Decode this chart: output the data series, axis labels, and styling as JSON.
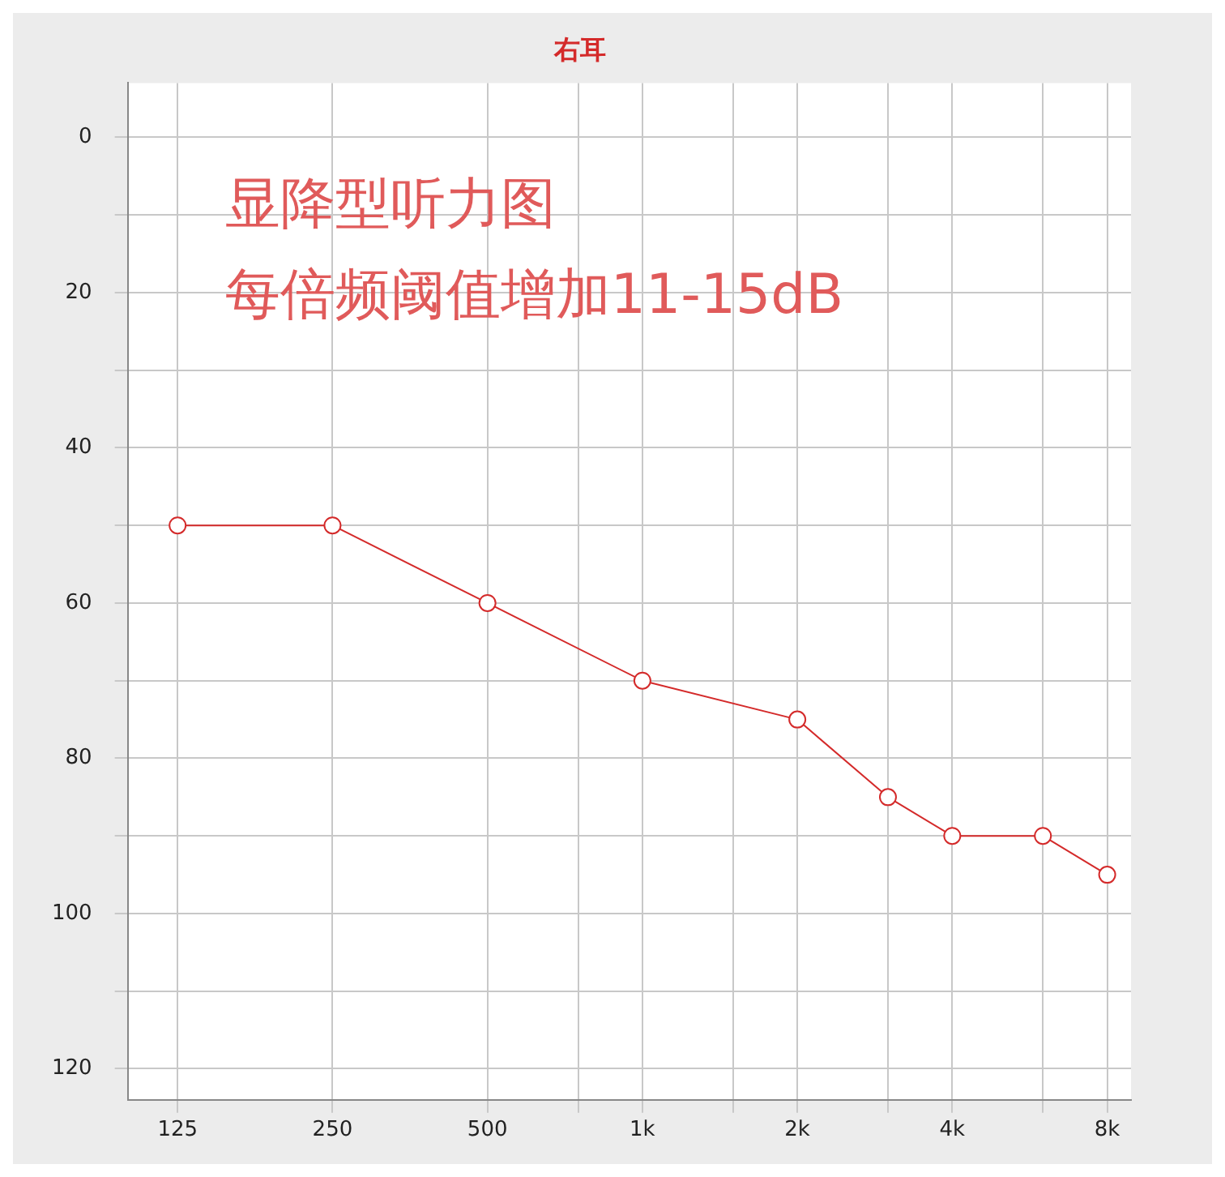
{
  "chart_data": {
    "type": "line",
    "title": "右耳",
    "annotations": [
      "显降型听力图",
      "每倍频阈值增加11-15dB"
    ],
    "x": [
      125,
      250,
      500,
      1000,
      2000,
      3000,
      4000,
      6000,
      8000
    ],
    "series": [
      {
        "color": "#d42a2a",
        "values": [
          50,
          50,
          60,
          70,
          75,
          85,
          90,
          90,
          95
        ]
      }
    ],
    "log": "x",
    "xlim": [
      100,
      8900
    ],
    "xticks": [
      125,
      250,
      500,
      {
        "value": 750,
        "label": null
      },
      {
        "value": 1000,
        "label": "1k"
      },
      {
        "value": 1500,
        "label": null
      },
      {
        "value": 2000,
        "label": "2k"
      },
      {
        "value": 3000,
        "label": null
      },
      {
        "value": 4000,
        "label": "4k"
      },
      {
        "value": 6000,
        "label": null
      },
      {
        "value": 8000,
        "label": "8k"
      }
    ],
    "ylim": [
      124,
      -7
    ],
    "yticks": [
      0,
      {
        "value": 10,
        "label": null
      },
      20,
      {
        "value": 30,
        "label": null
      },
      40,
      {
        "value": 50,
        "label": null
      },
      60,
      {
        "value": 70,
        "label": null
      },
      80,
      {
        "value": 90,
        "label": null
      },
      100,
      {
        "value": 110,
        "label": null
      },
      120
    ],
    "grid": true,
    "marker": "circle",
    "line_style": "solid",
    "legend": false
  }
}
